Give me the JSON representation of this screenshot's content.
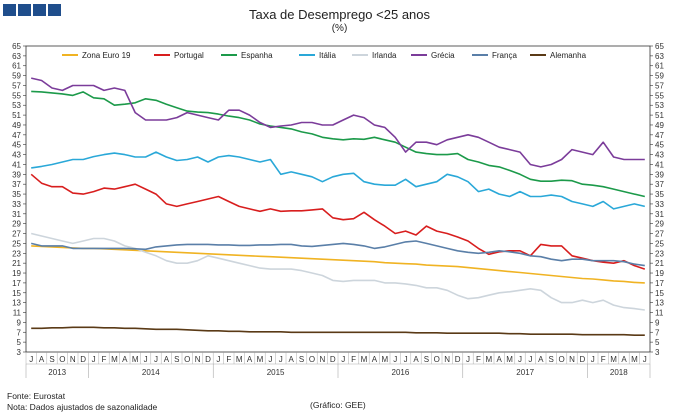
{
  "header": {
    "title": "Taxa de Desemprego <25 anos",
    "subtitle": "(%)"
  },
  "footer": {
    "source": "Fonte: Eurostat",
    "note": "Nota: Dados ajustados de sazonalidade",
    "credit": "(Gráfico: GEE)"
  },
  "colors": {
    "logo": "#1f4e8c"
  },
  "chart_data": {
    "type": "line",
    "y_ticks": [
      "65",
      "63",
      "61",
      "59",
      "57",
      "55",
      "53",
      "51",
      "49",
      "47",
      "45",
      "43",
      "41",
      "39",
      "37",
      "35",
      "33",
      "31",
      "29",
      "27",
      "25",
      "23",
      "21",
      "19",
      "17",
      "15",
      "13",
      "11",
      "9",
      "7",
      "5",
      "3"
    ],
    "ylim": [
      3,
      65
    ],
    "y_axes": "left-and-right",
    "grid": false,
    "legend_position": "top",
    "x": [
      "J",
      "A",
      "S",
      "O",
      "N",
      "D",
      "J",
      "F",
      "M",
      "A",
      "M",
      "J",
      "J",
      "A",
      "S",
      "O",
      "N",
      "D",
      "J",
      "F",
      "M",
      "A",
      "M",
      "J",
      "J",
      "A",
      "S",
      "O",
      "N",
      "D",
      "J",
      "F",
      "M",
      "A",
      "M",
      "J",
      "J",
      "A",
      "S",
      "O",
      "N",
      "D",
      "J",
      "F",
      "M",
      "A",
      "M",
      "J",
      "J",
      "A",
      "S",
      "O",
      "N",
      "D",
      "J",
      "F",
      "M",
      "A",
      "M",
      "J"
    ],
    "year_groups": [
      {
        "label": "2013",
        "start": 0,
        "end": 5
      },
      {
        "label": "2014",
        "start": 6,
        "end": 17
      },
      {
        "label": "2015",
        "start": 18,
        "end": 29
      },
      {
        "label": "2016",
        "start": 30,
        "end": 41
      },
      {
        "label": "2017",
        "start": 42,
        "end": 53
      },
      {
        "label": "2018",
        "start": 54,
        "end": 59
      }
    ],
    "series": [
      {
        "name": "Zona Euro 19",
        "color": "#f0b323",
        "values": [
          24.5,
          24.4,
          24.3,
          24.2,
          24.1,
          24.0,
          24.0,
          23.9,
          23.8,
          23.7,
          23.6,
          23.5,
          23.4,
          23.3,
          23.2,
          23.1,
          23.0,
          22.9,
          22.8,
          22.7,
          22.6,
          22.5,
          22.4,
          22.3,
          22.2,
          22.1,
          22.0,
          21.9,
          21.8,
          21.7,
          21.6,
          21.5,
          21.4,
          21.3,
          21.1,
          21.0,
          20.9,
          20.8,
          20.6,
          20.5,
          20.4,
          20.3,
          20.1,
          19.9,
          19.7,
          19.5,
          19.3,
          19.1,
          18.9,
          18.7,
          18.5,
          18.3,
          18.1,
          17.9,
          17.8,
          17.6,
          17.4,
          17.3,
          17.1,
          17.0
        ]
      },
      {
        "name": "Portugal",
        "color": "#d81e1e",
        "values": [
          39.0,
          37.2,
          36.5,
          36.5,
          35.2,
          35.0,
          35.5,
          36.2,
          36.0,
          36.5,
          37.0,
          36.0,
          35.0,
          33.0,
          32.5,
          33.0,
          33.5,
          34.0,
          34.5,
          33.5,
          32.5,
          32.0,
          31.5,
          32.0,
          31.5,
          31.6,
          31.6,
          31.8,
          32.0,
          30.2,
          29.8,
          30.0,
          31.3,
          29.8,
          28.5,
          27.0,
          27.5,
          26.7,
          28.5,
          27.5,
          27.0,
          26.3,
          25.5,
          24.0,
          22.8,
          23.3,
          23.5,
          23.5,
          22.5,
          24.8,
          24.5,
          24.5,
          22.5,
          22.0,
          21.5,
          21.2,
          21.0,
          21.5,
          20.5,
          19.8
        ]
      },
      {
        "name": "Espanha",
        "color": "#1c9a4a",
        "values": [
          55.8,
          55.7,
          55.5,
          55.3,
          55.0,
          55.7,
          54.5,
          54.3,
          53.0,
          53.2,
          53.5,
          54.3,
          54.0,
          53.2,
          52.5,
          51.8,
          51.6,
          51.5,
          51.2,
          50.8,
          50.5,
          50.0,
          49.2,
          48.8,
          48.5,
          48.2,
          47.6,
          47.2,
          46.5,
          46.2,
          46.0,
          46.2,
          46.1,
          46.5,
          46.0,
          45.5,
          44.5,
          43.5,
          43.2,
          43.0,
          43.0,
          43.2,
          42.0,
          41.5,
          40.8,
          40.5,
          39.8,
          39.0,
          38.0,
          37.6,
          37.6,
          37.8,
          37.7,
          37.0,
          36.8,
          36.5,
          36.0,
          35.5,
          35.0,
          34.5
        ]
      },
      {
        "name": "Itália",
        "color": "#2aa8d8",
        "values": [
          40.3,
          40.6,
          41.0,
          41.5,
          42.0,
          42.0,
          42.6,
          43.0,
          43.3,
          43.0,
          42.5,
          42.5,
          43.5,
          42.5,
          41.8,
          42.0,
          42.5,
          41.5,
          42.5,
          42.8,
          42.5,
          42.0,
          41.5,
          42.0,
          39.0,
          39.5,
          39.0,
          38.5,
          37.5,
          38.5,
          39.0,
          39.2,
          37.5,
          37.0,
          36.8,
          36.8,
          38.0,
          36.5,
          37.0,
          37.5,
          39.0,
          38.5,
          37.5,
          35.5,
          36.0,
          35.0,
          34.5,
          35.5,
          34.5,
          34.5,
          34.8,
          34.5,
          33.5,
          33.0,
          32.5,
          33.5,
          32.0,
          32.5,
          33.0,
          32.5
        ]
      },
      {
        "name": "Irlanda",
        "color": "#cdd5dc",
        "values": [
          27.0,
          26.5,
          26.0,
          25.5,
          25.0,
          25.5,
          26.0,
          26.0,
          25.5,
          24.5,
          24.0,
          23.2,
          22.5,
          21.5,
          21.0,
          21.0,
          21.5,
          22.5,
          22.0,
          21.5,
          21.0,
          20.5,
          20.0,
          19.8,
          19.8,
          19.8,
          19.5,
          19.0,
          18.5,
          17.5,
          17.3,
          17.5,
          17.5,
          17.5,
          17.0,
          17.0,
          16.8,
          16.5,
          16.0,
          16.0,
          15.5,
          14.5,
          13.8,
          14.0,
          14.5,
          15.0,
          15.2,
          15.5,
          15.8,
          15.5,
          14.0,
          13.0,
          13.0,
          13.5,
          13.0,
          13.5,
          12.5,
          12.0,
          11.8,
          11.5
        ]
      },
      {
        "name": "Grécia",
        "color": "#7b3c9a",
        "values": [
          58.5,
          58.0,
          56.5,
          56.0,
          57.0,
          57.0,
          57.0,
          56.0,
          56.5,
          56.0,
          51.5,
          50.0,
          50.0,
          50.0,
          50.5,
          51.5,
          51.0,
          50.5,
          50.0,
          52.0,
          52.0,
          51.0,
          49.5,
          48.5,
          48.8,
          49.0,
          49.5,
          49.5,
          49.0,
          49.0,
          50.0,
          51.0,
          50.5,
          49.0,
          48.5,
          46.5,
          43.5,
          45.5,
          45.5,
          45.0,
          46.0,
          46.5,
          47.0,
          46.5,
          45.5,
          44.5,
          44.0,
          43.5,
          41.0,
          40.5,
          41.0,
          42.0,
          44.0,
          43.5,
          43.0,
          45.5,
          42.5,
          42.0,
          42.0,
          42.0
        ]
      },
      {
        "name": "França",
        "color": "#5a7fa8",
        "values": [
          25.0,
          24.5,
          24.5,
          24.5,
          24.0,
          24.0,
          24.0,
          24.0,
          24.0,
          24.0,
          23.9,
          23.8,
          24.3,
          24.5,
          24.7,
          24.8,
          24.8,
          24.8,
          24.7,
          24.7,
          24.6,
          24.6,
          24.7,
          24.7,
          24.8,
          24.8,
          24.5,
          24.4,
          24.6,
          24.8,
          25.0,
          24.8,
          24.5,
          24.0,
          24.3,
          24.8,
          25.3,
          25.5,
          25.0,
          24.5,
          24.0,
          23.5,
          23.2,
          23.0,
          23.2,
          23.5,
          23.3,
          23.0,
          22.5,
          22.3,
          21.8,
          21.5,
          21.8,
          21.8,
          21.5,
          21.5,
          21.5,
          21.3,
          20.8,
          20.5
        ]
      },
      {
        "name": "Alemanha",
        "color": "#5a3a16",
        "values": [
          7.8,
          7.8,
          7.9,
          7.9,
          8.0,
          8.0,
          8.0,
          7.9,
          7.9,
          7.8,
          7.8,
          7.7,
          7.6,
          7.6,
          7.6,
          7.5,
          7.4,
          7.3,
          7.3,
          7.2,
          7.2,
          7.1,
          7.1,
          7.1,
          7.1,
          7.0,
          7.0,
          7.0,
          7.0,
          7.0,
          7.0,
          7.0,
          7.0,
          7.0,
          7.0,
          7.0,
          7.0,
          6.9,
          6.9,
          6.9,
          6.8,
          6.8,
          6.8,
          6.8,
          6.8,
          6.8,
          6.7,
          6.7,
          6.6,
          6.6,
          6.6,
          6.6,
          6.6,
          6.5,
          6.5,
          6.5,
          6.5,
          6.5,
          6.4,
          6.4
        ]
      }
    ]
  }
}
